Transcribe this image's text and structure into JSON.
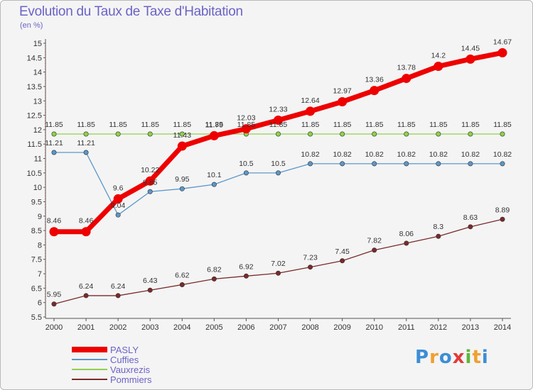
{
  "chart_data": {
    "type": "line",
    "title": "Evolution du Taux de Taxe d'Habitation",
    "subtitle": "(en %)",
    "x": [
      "2000",
      "2001",
      "2002",
      "2003",
      "2004",
      "2005",
      "2006",
      "2007",
      "2008",
      "2009",
      "2010",
      "2011",
      "2012",
      "2013",
      "2014"
    ],
    "ylim": [
      5.5,
      15
    ],
    "yticks": [
      "5.5",
      "6",
      "6.5",
      "7",
      "7.5",
      "8",
      "8.5",
      "9",
      "9.5",
      "10",
      "10.5",
      "11",
      "11.5",
      "12",
      "12.5",
      "13",
      "13.5",
      "14",
      "14.5",
      "15"
    ],
    "grid": false,
    "legend_position": "bottom-left",
    "series": [
      {
        "name": "PASLY",
        "color": "#ee0000",
        "values": [
          8.46,
          8.46,
          9.6,
          10.22,
          11.43,
          11.79,
          12.03,
          12.33,
          12.64,
          12.97,
          13.36,
          13.78,
          14.2,
          14.45,
          14.67
        ],
        "labels": [
          "8.46",
          "8.46",
          "9.6",
          "10.22",
          "11.43",
          "11.79",
          "12.03",
          "12.33",
          "12.64",
          "12.97",
          "13.36",
          "13.78",
          "14.2",
          "14.45",
          "14.67"
        ]
      },
      {
        "name": "Cuffies",
        "color": "#5b97c9",
        "values": [
          11.21,
          11.21,
          9.04,
          9.85,
          9.95,
          10.1,
          10.5,
          10.5,
          10.82,
          10.82,
          10.82,
          10.82,
          10.82,
          10.82,
          10.82
        ],
        "labels": [
          "11.21",
          "11.21",
          "9.04",
          "9.85",
          "9.95",
          "10.1",
          "10.5",
          "10.5",
          "10.82",
          "10.82",
          "10.82",
          "10.82",
          "10.82",
          "10.82",
          "10.82"
        ]
      },
      {
        "name": "Vauxrezis",
        "color": "#8ed24a",
        "values": [
          11.85,
          11.85,
          11.85,
          11.85,
          11.85,
          11.85,
          11.85,
          11.85,
          11.85,
          11.85,
          11.85,
          11.85,
          11.85,
          11.85,
          11.85
        ],
        "labels": [
          "11.85",
          "11.85",
          "11.85",
          "11.85",
          "11.85",
          "11.85",
          "11.85",
          "11.85",
          "11.85",
          "11.85",
          "11.85",
          "11.85",
          "11.85",
          "11.85",
          "11.85"
        ]
      },
      {
        "name": "Pommiers",
        "color": "#7a2a2a",
        "values": [
          5.95,
          6.24,
          6.24,
          6.43,
          6.62,
          6.82,
          6.92,
          7.02,
          7.23,
          7.45,
          7.82,
          8.06,
          8.3,
          8.63,
          8.89
        ],
        "labels": [
          "5.95",
          "6.24",
          "6.24",
          "6.43",
          "6.62",
          "6.82",
          "6.92",
          "7.02",
          "7.23",
          "7.45",
          "7.82",
          "8.06",
          "8.3",
          "8.63",
          "8.89"
        ]
      }
    ]
  },
  "branding": {
    "logo_parts": [
      "P",
      "r",
      "o",
      "x",
      "i",
      "t",
      "i"
    ],
    "logo_colors": [
      "#3b8ed6",
      "#f0a030",
      "#3b8ed6",
      "#e23a3a",
      "#5fb53b",
      "#f0a030",
      "#3b8ed6"
    ]
  }
}
